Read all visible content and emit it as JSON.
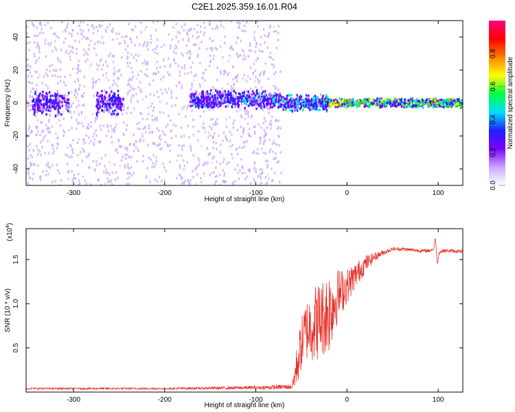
{
  "title": "C2E1.2025.359.16.01.R04",
  "chart_data": [
    {
      "type": "heatmap",
      "xlabel": "Height of straight line (km)",
      "ylabel": "Frequency (Hz)",
      "xlim": [
        -352,
        127
      ],
      "ylim": [
        -50,
        50
      ],
      "xticks": [
        -300,
        -200,
        -100,
        0,
        100
      ],
      "yticks": [
        -40,
        -20,
        0,
        20,
        40
      ],
      "colorbar": {
        "label": "Normalized spectral amplitude",
        "range": [
          0,
          1
        ],
        "ticks": [
          0.0,
          0.2,
          0.4,
          0.6,
          0.8
        ],
        "colors": [
          "#ffffff",
          "#c9a8ff",
          "#7b00ff",
          "#2020ff",
          "#00e0ff",
          "#00ff40",
          "#ffff00",
          "#ff8000",
          "#ff0000",
          "#ff0080"
        ]
      },
      "features": [
        {
          "x": [
            -352,
            -72
          ],
          "freq_half_width": 50,
          "amplitude": 0.12
        },
        {
          "x": [
            -345,
            -305
          ],
          "freq_center": 0,
          "freq_half_width": 8,
          "amplitude": 0.3
        },
        {
          "x": [
            -275,
            -245
          ],
          "freq_center": 0,
          "freq_half_width": 8,
          "amplitude": 0.3
        },
        {
          "x": [
            -172,
            -72
          ],
          "freq_center": 2,
          "freq_half_width": 6,
          "amplitude": 0.35
        },
        {
          "x": [
            -72,
            -20
          ],
          "freq_center": 0,
          "freq_half_width": 6,
          "amplitude": 0.45
        },
        {
          "x": [
            -20,
            20
          ],
          "freq_center": 0,
          "freq_half_width": 3,
          "amplitude": 0.7
        },
        {
          "x": [
            20,
            127
          ],
          "freq_center": 0,
          "freq_half_width": 3,
          "amplitude": 0.6
        },
        {
          "x": [
            90,
            100
          ],
          "freq_center": 1,
          "freq_half_width": 1.5,
          "amplitude": 0.85
        }
      ]
    },
    {
      "type": "line",
      "xlabel": "Height of straight line (km)",
      "ylabel": "SNR (10 * v/v)",
      "yscale_label": "(x10",
      "yscale_exp": "4",
      "xlim": [
        -352,
        127
      ],
      "ylim": [
        0,
        1.85
      ],
      "xticks": [
        -300,
        -200,
        -100,
        0,
        100
      ],
      "yticks": [
        0.5,
        1.0,
        1.5
      ],
      "color": "#e8302a",
      "series": [
        {
          "x": [
            -352,
            -300,
            -200,
            -100,
            -60,
            -55,
            -50,
            -45,
            -40,
            -35,
            -30,
            -25,
            -20,
            -15,
            -10,
            -5,
            0,
            10,
            20,
            30,
            40,
            50,
            60,
            70,
            80,
            90,
            95,
            97,
            99,
            101,
            105,
            110,
            127
          ],
          "y": [
            0.04,
            0.04,
            0.04,
            0.05,
            0.06,
            0.3,
            0.55,
            0.7,
            0.75,
            0.78,
            0.82,
            0.86,
            0.92,
            1.0,
            1.1,
            1.15,
            1.2,
            1.33,
            1.45,
            1.53,
            1.58,
            1.62,
            1.62,
            1.61,
            1.6,
            1.6,
            1.62,
            1.75,
            1.45,
            1.58,
            1.6,
            1.6,
            1.59
          ],
          "noise_amplitude": [
            0.01,
            0.01,
            0.01,
            0.02,
            0.03,
            0.25,
            0.3,
            0.35,
            0.4,
            0.45,
            0.45,
            0.45,
            0.5,
            0.4,
            0.3,
            0.25,
            0.2,
            0.15,
            0.1,
            0.05,
            0.03,
            0.02,
            0.02,
            0.02,
            0.02,
            0.02,
            0.02,
            0.02,
            0.02,
            0.02,
            0.02,
            0.02,
            0.02
          ]
        }
      ]
    }
  ]
}
